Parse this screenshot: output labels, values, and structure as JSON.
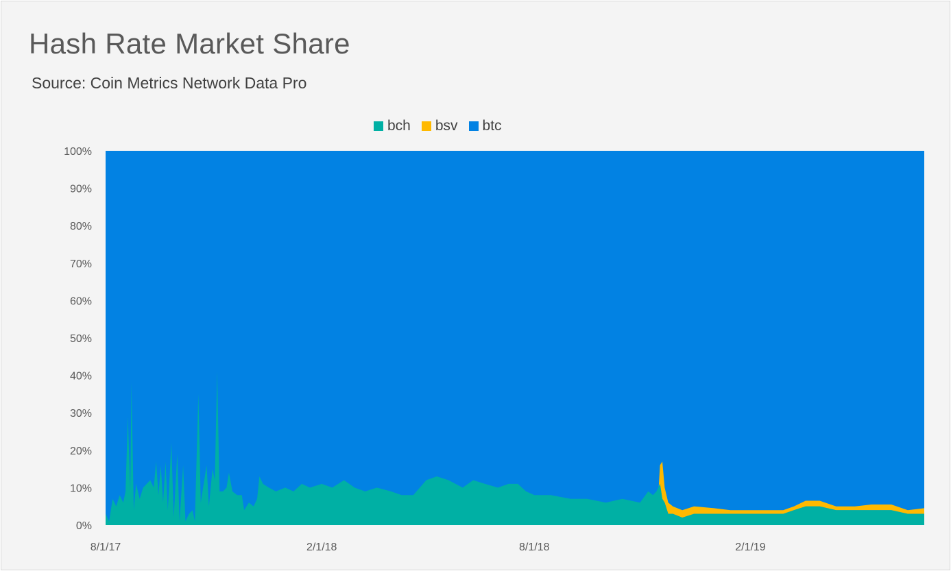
{
  "title": "Hash Rate Market Share",
  "subtitle": "Source: Coin Metrics Network Data Pro",
  "colors": {
    "bch": "#00b0a4",
    "bsv": "#ffb900",
    "btc": "#0282e3"
  },
  "chart_data": {
    "type": "area",
    "stacked": true,
    "normalized": true,
    "title": "Hash Rate Market Share",
    "subtitle": "Source: Coin Metrics Network Data Pro",
    "legend": [
      "bch",
      "bsv",
      "btc"
    ],
    "legend_position": "top",
    "ylim": [
      0,
      100
    ],
    "y_ticks": [
      "0%",
      "10%",
      "20%",
      "30%",
      "40%",
      "50%",
      "60%",
      "70%",
      "80%",
      "90%",
      "100%"
    ],
    "x_range": [
      "2017-08-01",
      "2019-06-29"
    ],
    "x_ticks": [
      {
        "date": "2017-08-01",
        "label": "8/1/17"
      },
      {
        "date": "2018-02-01",
        "label": "2/1/18"
      },
      {
        "date": "2018-08-01",
        "label": "8/1/18"
      },
      {
        "date": "2019-02-01",
        "label": "2/1/19"
      }
    ],
    "series": [
      {
        "name": "bch",
        "points": [
          [
            "2017-08-01",
            3
          ],
          [
            "2017-08-04",
            1
          ],
          [
            "2017-08-07",
            7
          ],
          [
            "2017-08-10",
            5
          ],
          [
            "2017-08-13",
            8
          ],
          [
            "2017-08-16",
            6
          ],
          [
            "2017-08-18",
            9
          ],
          [
            "2017-08-20",
            29
          ],
          [
            "2017-08-22",
            9
          ],
          [
            "2017-08-23",
            38
          ],
          [
            "2017-08-25",
            4
          ],
          [
            "2017-08-27",
            11
          ],
          [
            "2017-08-30",
            7
          ],
          [
            "2017-09-02",
            10
          ],
          [
            "2017-09-05",
            11
          ],
          [
            "2017-09-08",
            12
          ],
          [
            "2017-09-11",
            10
          ],
          [
            "2017-09-13",
            17
          ],
          [
            "2017-09-15",
            8
          ],
          [
            "2017-09-17",
            16
          ],
          [
            "2017-09-19",
            6
          ],
          [
            "2017-09-21",
            17
          ],
          [
            "2017-09-23",
            4
          ],
          [
            "2017-09-26",
            22
          ],
          [
            "2017-09-28",
            2
          ],
          [
            "2017-10-01",
            19
          ],
          [
            "2017-10-03",
            1
          ],
          [
            "2017-10-06",
            16
          ],
          [
            "2017-10-08",
            1
          ],
          [
            "2017-10-11",
            3
          ],
          [
            "2017-10-14",
            4
          ],
          [
            "2017-10-16",
            1
          ],
          [
            "2017-10-19",
            35
          ],
          [
            "2017-10-21",
            6
          ],
          [
            "2017-10-24",
            12
          ],
          [
            "2017-10-26",
            16
          ],
          [
            "2017-10-28",
            5
          ],
          [
            "2017-10-31",
            15
          ],
          [
            "2017-11-02",
            12
          ],
          [
            "2017-11-04",
            41
          ],
          [
            "2017-11-06",
            9
          ],
          [
            "2017-11-09",
            9
          ],
          [
            "2017-11-12",
            10
          ],
          [
            "2017-11-14",
            14
          ],
          [
            "2017-11-17",
            9
          ],
          [
            "2017-11-21",
            8
          ],
          [
            "2017-11-25",
            8
          ],
          [
            "2017-11-27",
            4
          ],
          [
            "2017-12-01",
            6
          ],
          [
            "2017-12-05",
            5
          ],
          [
            "2017-12-08",
            7
          ],
          [
            "2017-12-10",
            13
          ],
          [
            "2017-12-13",
            11
          ],
          [
            "2017-12-18",
            10
          ],
          [
            "2017-12-24",
            9
          ],
          [
            "2018-01-01",
            10
          ],
          [
            "2018-01-08",
            9
          ],
          [
            "2018-01-15",
            11
          ],
          [
            "2018-01-22",
            10
          ],
          [
            "2018-02-01",
            11
          ],
          [
            "2018-02-10",
            10
          ],
          [
            "2018-02-20",
            12
          ],
          [
            "2018-03-01",
            10
          ],
          [
            "2018-03-10",
            9
          ],
          [
            "2018-03-20",
            10
          ],
          [
            "2018-04-01",
            9
          ],
          [
            "2018-04-10",
            8
          ],
          [
            "2018-04-20",
            8
          ],
          [
            "2018-05-01",
            12
          ],
          [
            "2018-05-10",
            13
          ],
          [
            "2018-05-20",
            12
          ],
          [
            "2018-06-01",
            10
          ],
          [
            "2018-06-10",
            12
          ],
          [
            "2018-06-20",
            11
          ],
          [
            "2018-07-01",
            10
          ],
          [
            "2018-07-10",
            11
          ],
          [
            "2018-07-18",
            11
          ],
          [
            "2018-07-25",
            9
          ],
          [
            "2018-08-01",
            8
          ],
          [
            "2018-08-15",
            8
          ],
          [
            "2018-09-01",
            7
          ],
          [
            "2018-09-15",
            7
          ],
          [
            "2018-10-01",
            6
          ],
          [
            "2018-10-15",
            7
          ],
          [
            "2018-10-30",
            6
          ],
          [
            "2018-11-06",
            9
          ],
          [
            "2018-11-10",
            8
          ],
          [
            "2018-11-13",
            9
          ],
          [
            "2018-11-16",
            11
          ],
          [
            "2018-11-18",
            7
          ],
          [
            "2018-11-20",
            6
          ],
          [
            "2018-11-23",
            3
          ],
          [
            "2018-11-27",
            3
          ],
          [
            "2018-12-05",
            2
          ],
          [
            "2018-12-15",
            3
          ],
          [
            "2019-01-01",
            3
          ],
          [
            "2019-01-15",
            3
          ],
          [
            "2019-02-01",
            3
          ],
          [
            "2019-02-15",
            3
          ],
          [
            "2019-03-01",
            3
          ],
          [
            "2019-03-10",
            4
          ],
          [
            "2019-03-20",
            5
          ],
          [
            "2019-04-01",
            5
          ],
          [
            "2019-04-15",
            4
          ],
          [
            "2019-05-01",
            4
          ],
          [
            "2019-05-15",
            4
          ],
          [
            "2019-06-01",
            4
          ],
          [
            "2019-06-15",
            3
          ],
          [
            "2019-06-29",
            3
          ]
        ]
      },
      {
        "name": "bsv",
        "points": [
          [
            "2018-11-15",
            0
          ],
          [
            "2018-11-16",
            5
          ],
          [
            "2018-11-18",
            10
          ],
          [
            "2018-11-20",
            4
          ],
          [
            "2018-11-23",
            3
          ],
          [
            "2018-11-27",
            2
          ],
          [
            "2018-12-05",
            2
          ],
          [
            "2018-12-15",
            2
          ],
          [
            "2019-01-01",
            1.5
          ],
          [
            "2019-01-15",
            1
          ],
          [
            "2019-02-01",
            1
          ],
          [
            "2019-02-15",
            1
          ],
          [
            "2019-03-01",
            1
          ],
          [
            "2019-03-10",
            1
          ],
          [
            "2019-03-20",
            1.5
          ],
          [
            "2019-04-01",
            1.5
          ],
          [
            "2019-04-15",
            1
          ],
          [
            "2019-05-01",
            1
          ],
          [
            "2019-05-15",
            1.5
          ],
          [
            "2019-06-01",
            1.5
          ],
          [
            "2019-06-15",
            1
          ],
          [
            "2019-06-29",
            1.5
          ]
        ]
      },
      {
        "name": "btc",
        "fills_remainder_to": 100
      }
    ]
  }
}
